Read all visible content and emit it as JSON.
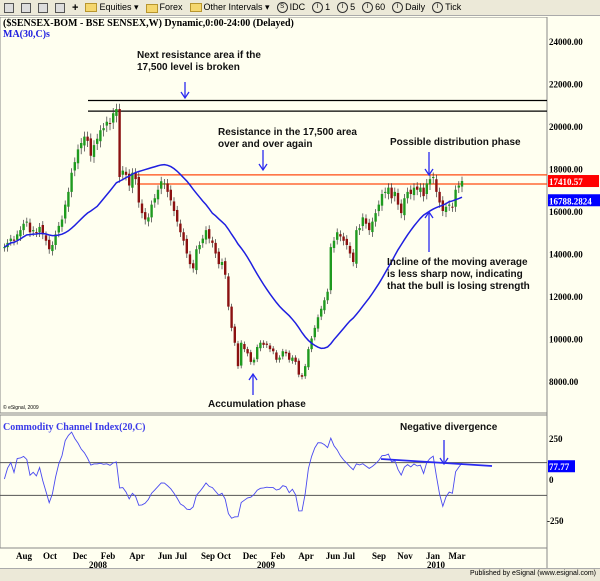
{
  "toolbar": {
    "items": [
      {
        "label": "Equities",
        "icon": "folder-icon",
        "dropdown": true
      },
      {
        "label": "Forex",
        "icon": "folder-icon",
        "dropdown": false
      },
      {
        "label": "Other Intervals",
        "icon": "folder-icon",
        "dropdown": true
      },
      {
        "label": "IDC",
        "icon": "s-circle-icon"
      },
      {
        "label": "1",
        "icon": "interval-icon"
      },
      {
        "label": "5",
        "icon": "interval-icon"
      },
      {
        "label": "60",
        "icon": "interval-icon"
      },
      {
        "label": "Daily",
        "icon": "interval-icon"
      },
      {
        "label": "Tick",
        "icon": "interval-icon"
      }
    ]
  },
  "footer": "Published by eSignal (www.esignal.com)",
  "chart_data": {
    "type": "candlestick",
    "title": "($SENSEX-BOM - BSE SENSEX,W) Dynamic,0:00-24:00 (Delayed)",
    "ma_label": "MA(30,C)s",
    "copyright": "© eSignal, 2009",
    "colors": {
      "up": "#1f9a1f",
      "down": "#8b1111",
      "ma": "#1f1fe0",
      "resistance_orange": "#ff4a10",
      "resistance_black": "#000000",
      "cci": "#4a4af0",
      "last_price_bg": "#ff0000",
      "ma_value_bg": "#0000ff"
    },
    "price_axis": {
      "ylim": [
        6600,
        24600
      ],
      "ticks": [
        "24000.00",
        "22000.00",
        "20000.00",
        "18000.00",
        "16000.00",
        "14000.00",
        "12000.00",
        "10000.00",
        "8000.00"
      ]
    },
    "last_price": "17410.57",
    "ma_last": "16788.2824",
    "weekly_close": [
      14300,
      14500,
      14700,
      14600,
      14900,
      15100,
      15400,
      15500,
      15000,
      15100,
      15000,
      15250,
      14900,
      14600,
      14200,
      14400,
      14900,
      15300,
      15600,
      16300,
      16900,
      17800,
      18300,
      18900,
      19200,
      19500,
      19300,
      18600,
      19100,
      19400,
      19800,
      19900,
      20200,
      20100,
      20600,
      20800,
      17600,
      17900,
      17700,
      17200,
      17800,
      17500,
      16400,
      15900,
      15600,
      15700,
      16300,
      16600,
      17000,
      17400,
      17300,
      16900,
      16500,
      16000,
      15500,
      15000,
      14600,
      14000,
      13500,
      13300,
      14200,
      14400,
      14700,
      15100,
      14700,
      14500,
      14000,
      13500,
      13600,
      13000,
      11500,
      10500,
      9800,
      8700,
      9800,
      9500,
      9300,
      8900,
      9000,
      9600,
      9800,
      9700,
      9700,
      9500,
      9400,
      9000,
      9100,
      9400,
      9300,
      9000,
      9100,
      8900,
      8300,
      8200,
      8700,
      9500,
      10000,
      10500,
      11000,
      11400,
      11800,
      12200,
      14300,
      14600,
      15000,
      14800,
      14600,
      14400,
      14000,
      13600,
      15100,
      15200,
      15700,
      15400,
      15100,
      15500,
      15900,
      16300,
      16800,
      16900,
      17100,
      16600,
      16900,
      16300,
      15900,
      16600,
      16900,
      16800,
      17100,
      17000,
      17100,
      16700,
      17300,
      17500,
      17600,
      16900,
      16400,
      16000,
      16200,
      16300,
      16200,
      17000,
      17200,
      17410.57
    ],
    "resistance_levels": [
      {
        "price": 21200,
        "color": "black"
      },
      {
        "price": 20700,
        "color": "black"
      },
      {
        "price": 17700,
        "color": "orange"
      },
      {
        "price": 17270,
        "color": "orange"
      }
    ],
    "cci": {
      "label": "Commodity Channel Index(20,C)",
      "last": "77.77",
      "ylim": [
        -420,
        480
      ],
      "ticks": [
        "250",
        "0",
        "-250"
      ],
      "bands": [
        100,
        -100
      ],
      "divergence_label": "Negative divergence"
    },
    "x_axis": {
      "months": [
        "Aug",
        "Oct",
        "Dec",
        "Feb",
        "Apr",
        "Jun",
        "Jul",
        "Sep",
        "Oct",
        "Dec",
        "Feb",
        "Apr",
        "Jun",
        "Jul",
        "Sep",
        "Nov",
        "Jan",
        "Mar"
      ],
      "years": [
        "2008",
        "2009",
        "2010"
      ]
    },
    "annotations": [
      {
        "id": "next-resistance",
        "lines": [
          "Next resistance area if the",
          "17,500 level is broken"
        ]
      },
      {
        "id": "resistance-17500",
        "lines": [
          "Resistance in the 17,500 area",
          "over and over again"
        ]
      },
      {
        "id": "distribution",
        "lines": [
          "Possible distribution phase"
        ]
      },
      {
        "id": "incline",
        "lines": [
          "Incline of the moving average",
          "is less sharp now, indicating",
          "that the bull is losing strength"
        ]
      },
      {
        "id": "accumulation",
        "lines": [
          "Accumulation phase"
        ]
      }
    ]
  }
}
